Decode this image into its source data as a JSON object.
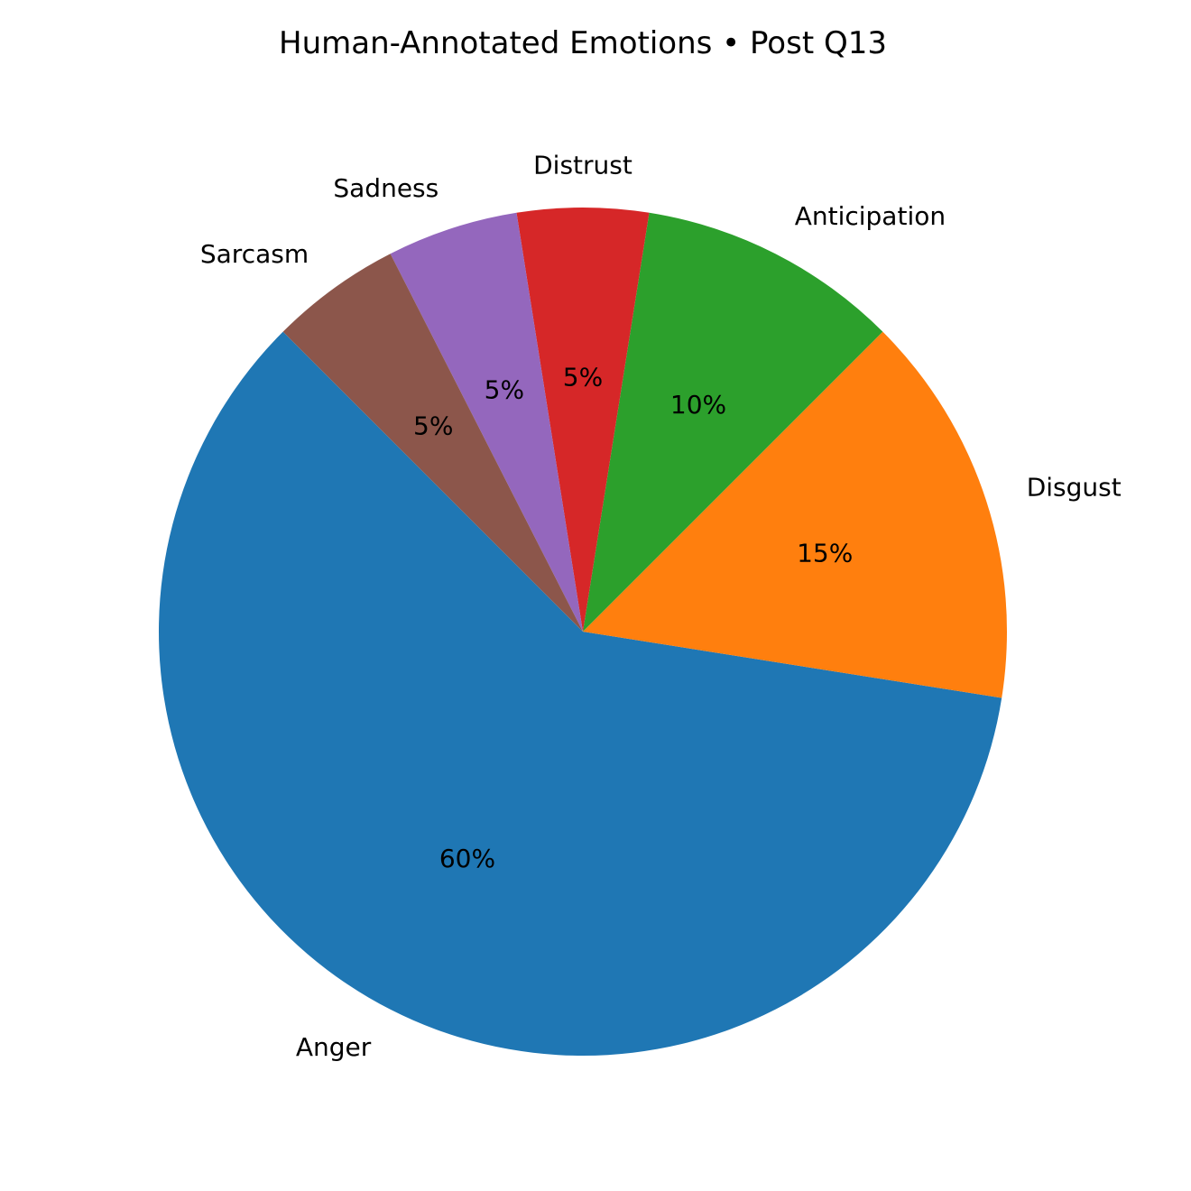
{
  "chart_data": {
    "type": "pie",
    "title": "Human-Annotated Emotions • Post Q13",
    "slices": [
      {
        "label": "Anger",
        "value": 60,
        "pct_text": "60%",
        "color": "#1f77b4"
      },
      {
        "label": "Disgust",
        "value": 15,
        "pct_text": "15%",
        "color": "#ff7f0e"
      },
      {
        "label": "Anticipation",
        "value": 10,
        "pct_text": "10%",
        "color": "#2ca02c"
      },
      {
        "label": "Distrust",
        "value": 5,
        "pct_text": "5%",
        "color": "#d62728"
      },
      {
        "label": "Sadness",
        "value": 5,
        "pct_text": "5%",
        "color": "#9467bd"
      },
      {
        "label": "Sarcasm",
        "value": 5,
        "pct_text": "5%",
        "color": "#8c564b"
      }
    ],
    "start_angle_deg": 135,
    "direction": "counterclockwise"
  }
}
